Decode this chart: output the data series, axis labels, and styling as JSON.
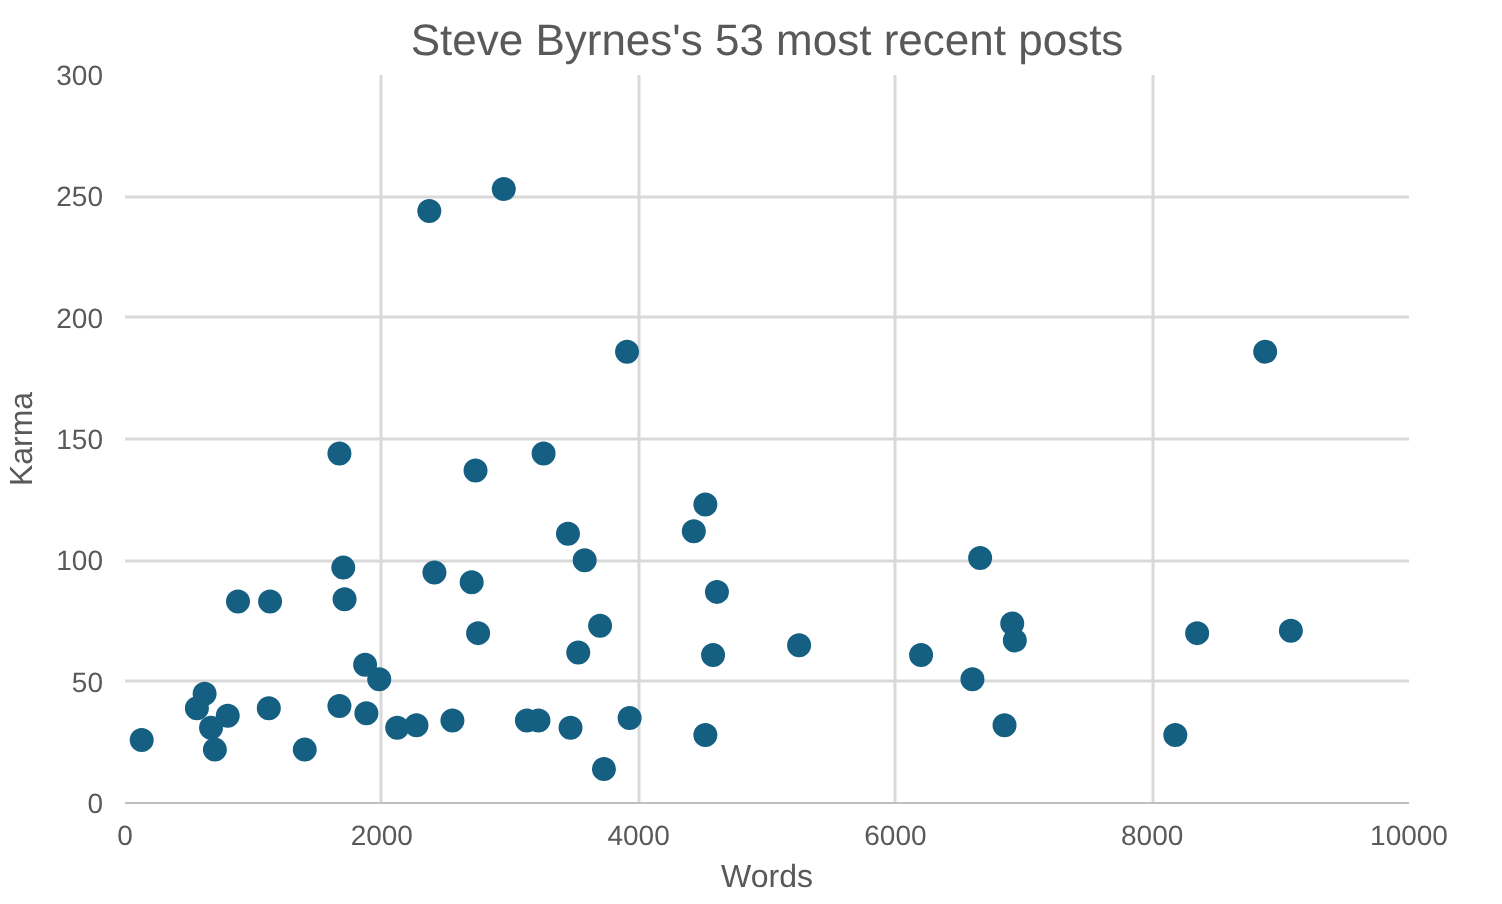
{
  "chart_data": {
    "type": "scatter",
    "title": "Steve Byrnes's 53 most recent posts",
    "xlabel": "Words",
    "ylabel": "Karma",
    "x": [
      130,
      560,
      620,
      670,
      700,
      800,
      880,
      1130,
      1120,
      1400,
      1670,
      1700,
      1710,
      1670,
      1870,
      1880,
      1980,
      2120,
      2270,
      2370,
      2410,
      2550,
      2700,
      2730,
      2750,
      2950,
      3130,
      3220,
      3260,
      3450,
      3470,
      3530,
      3580,
      3700,
      3730,
      3910,
      3930,
      4430,
      4520,
      4610,
      4580,
      4520,
      5250,
      6200,
      6660,
      6600,
      6910,
      6930,
      6850,
      8180,
      8350,
      9080,
      8880
    ],
    "series": [
      {
        "color": "#156082",
        "values": [
          26,
          39,
          45,
          31,
          22,
          36,
          83,
          83,
          39,
          22,
          144,
          97,
          84,
          40,
          57,
          37,
          51,
          31,
          32,
          244,
          95,
          34,
          91,
          137,
          70,
          253,
          34,
          34,
          144,
          111,
          31,
          62,
          100,
          73,
          14,
          186,
          35,
          112,
          123,
          87,
          61,
          28,
          65,
          61,
          101,
          51,
          74,
          67,
          32,
          28,
          70,
          71,
          186
        ]
      }
    ],
    "xlim": [
      0,
      10000
    ],
    "xticks": [
      0,
      2000,
      4000,
      6000,
      8000,
      10000
    ],
    "ylim": [
      0,
      300
    ],
    "yticks": [
      0,
      50,
      100,
      150,
      200,
      250,
      300
    ],
    "grid": true,
    "marker": "circle"
  }
}
